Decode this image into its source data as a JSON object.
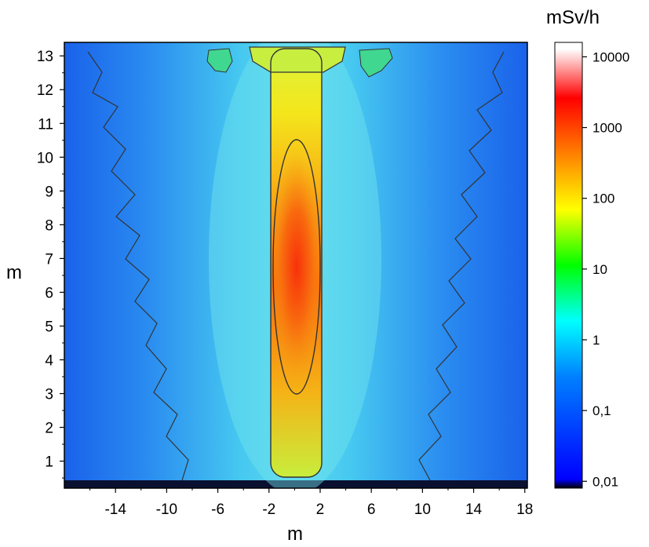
{
  "chart_data": {
    "type": "heatmap",
    "title": "",
    "xlabel": "m",
    "ylabel": "m",
    "xlim": [
      -18,
      18.2
    ],
    "ylim": [
      0.2,
      13.4
    ],
    "x_ticks": [
      -14,
      -10,
      -6,
      -2,
      2,
      6,
      10,
      14,
      18
    ],
    "y_ticks": [
      1,
      2,
      3,
      4,
      5,
      6,
      7,
      8,
      9,
      10,
      11,
      12,
      13
    ],
    "colorbar": {
      "unit": "mSv/h",
      "scale": "log",
      "range": [
        0.008,
        16000
      ],
      "ticks": [
        0.01,
        0.1,
        1,
        10,
        100,
        1000,
        10000
      ],
      "tick_labels": [
        "0,01",
        "0,1",
        "1",
        "10",
        "100",
        "1000",
        "10000"
      ],
      "colors": [
        "#000000",
        "#0000ff",
        "#0080ff",
        "#00ffff",
        "#00ff00",
        "#ffff00",
        "#ff8000",
        "#ff0000",
        "#ffffff"
      ]
    },
    "source_region": {
      "x_range": [
        -2,
        2
      ],
      "y_range": [
        0.6,
        13.2
      ],
      "peak_mSv_h": 5000,
      "peak_location": [
        0,
        6.8
      ]
    },
    "background_level_mSv_h": 0.15,
    "contours": [
      "ellipse around peak",
      "tube outline",
      "noisy iso-lines at left and right"
    ]
  }
}
